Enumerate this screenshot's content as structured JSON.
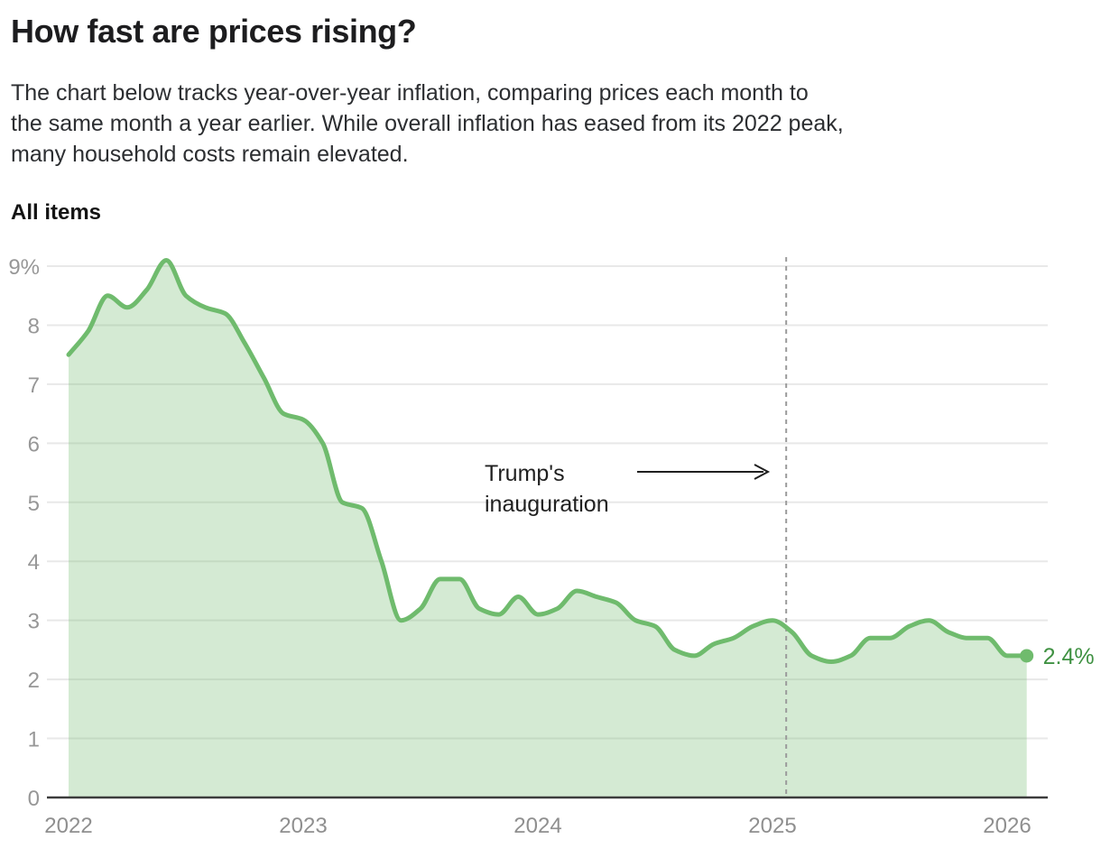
{
  "header": {
    "title": "How fast are prices rising?",
    "subtitle": "The chart below tracks year-over-year inflation, comparing prices each month to\nthe same month a year earlier. While overall inflation has eased from its 2022 peak,\nmany household costs remain elevated."
  },
  "chart_data": {
    "type": "area",
    "title": "All items",
    "x_start": "2022-01",
    "x_frequency": "monthly",
    "xtick_labels": [
      "2022",
      "2023",
      "2024",
      "2025",
      "2026"
    ],
    "ytick_labels": [
      "0",
      "1",
      "2",
      "3",
      "4",
      "5",
      "6",
      "7",
      "8",
      "9%"
    ],
    "ylim": [
      0,
      9
    ],
    "grid": "horizontal",
    "legend_position": "none",
    "series": [
      {
        "name": "All items",
        "values": [
          7.5,
          7.9,
          8.5,
          8.3,
          8.6,
          9.1,
          8.5,
          8.3,
          8.2,
          7.7,
          7.1,
          6.5,
          6.4,
          6.0,
          5.0,
          4.9,
          4.0,
          3.0,
          3.2,
          3.7,
          3.7,
          3.2,
          3.1,
          3.4,
          3.1,
          3.2,
          3.5,
          3.4,
          3.3,
          3.0,
          2.9,
          2.5,
          2.4,
          2.6,
          2.7,
          2.9,
          3.0,
          2.8,
          2.4,
          2.3,
          2.4,
          2.7,
          2.7,
          2.9,
          3.0,
          2.8,
          2.7,
          2.7,
          2.4,
          2.4
        ]
      }
    ],
    "end_point": {
      "value": 2.4,
      "label": "2.4%"
    },
    "annotation": {
      "lines": [
        "Trump's",
        "inauguration"
      ],
      "arrow_direction": "right",
      "marker": "dashed-vertical-line",
      "event_month_offset": 36.7
    },
    "colors": {
      "line": "#6fbb6d",
      "fill_opacity": 0.3,
      "end_label": "#3f9142",
      "grid": "#e8e8e8",
      "axis": "#3c3c3c",
      "dashed_line": "#9b9b9b",
      "tick_text": "#979797",
      "annotation_text": "#1f1f1f",
      "title_text": "#1d1d1f"
    }
  }
}
